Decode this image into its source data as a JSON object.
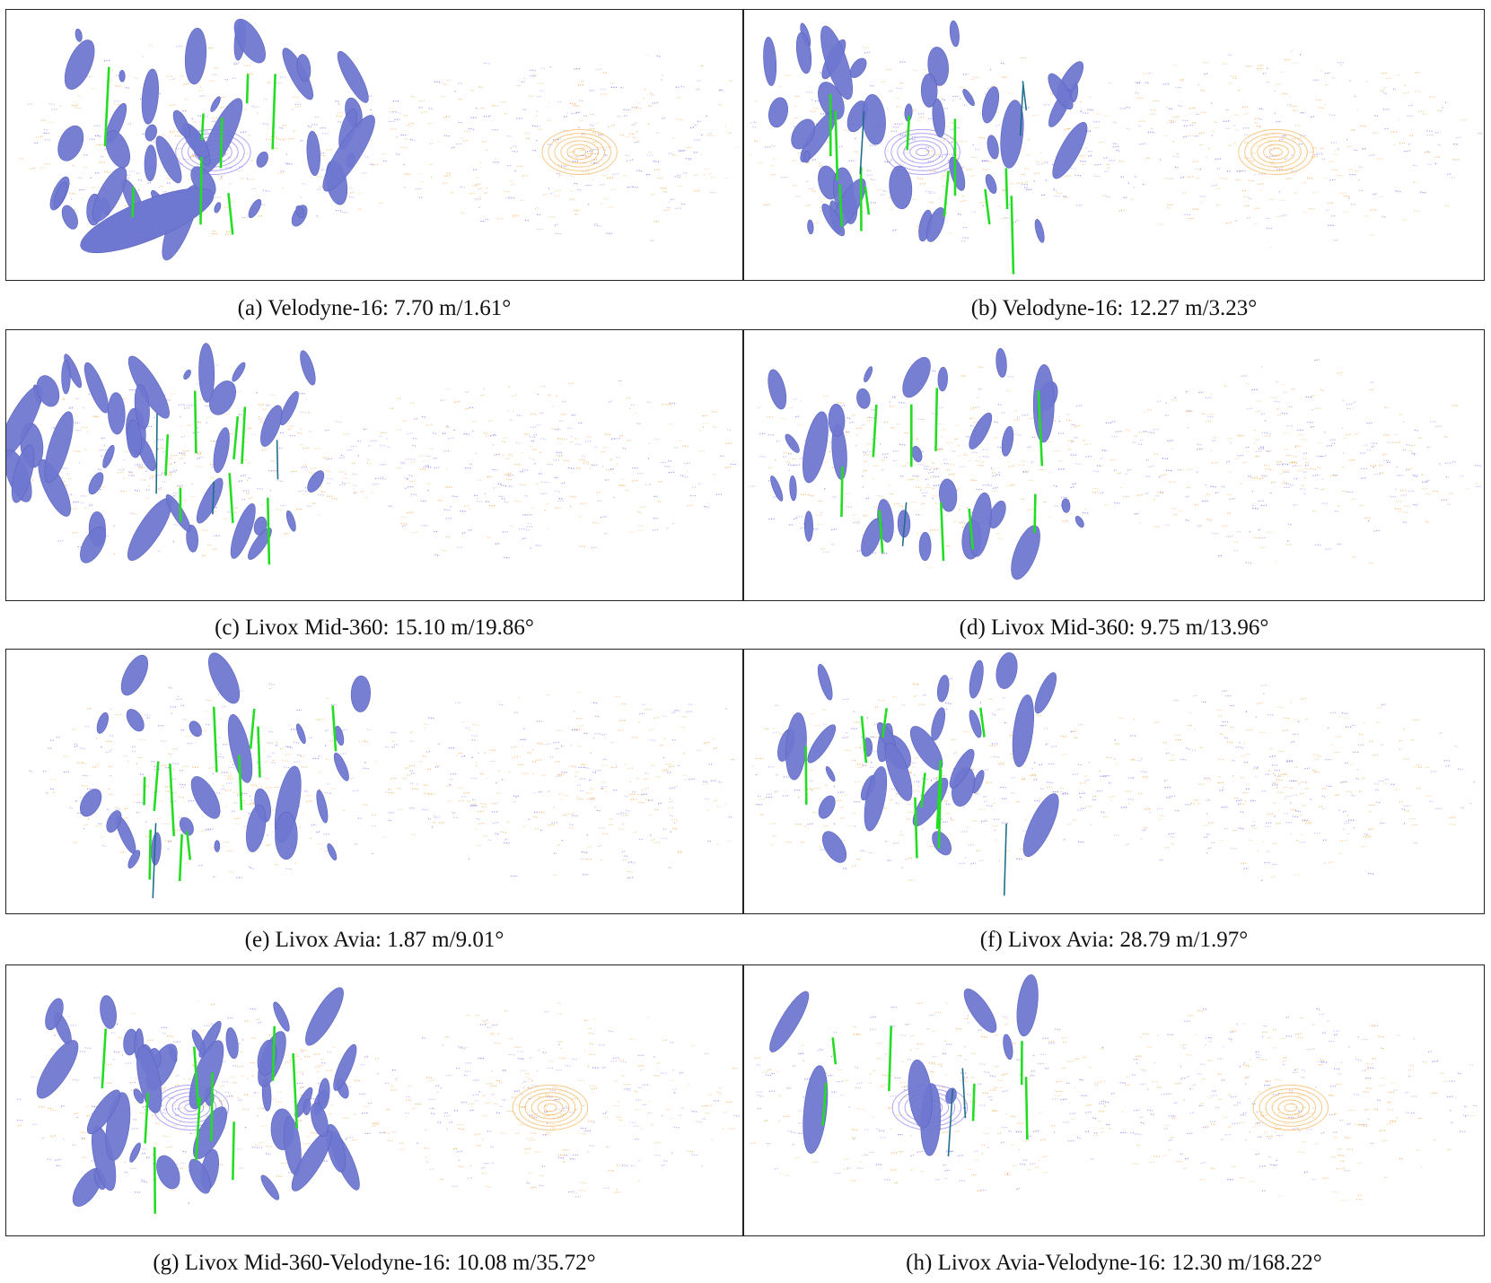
{
  "figure": {
    "colors": {
      "ellipse": "#6f78d0",
      "ellipse_stroke": "#5a63bf",
      "points_source": "#f2a33a",
      "points_target": "#7b68ee",
      "correspondence": "#22dd22",
      "rejected": "#1f6e8c",
      "border": "#222222"
    },
    "panels": [
      {
        "id": "a",
        "caption": "(a) Velodyne-16: 7.70 m/1.61°"
      },
      {
        "id": "b",
        "caption": "(b) Velodyne-16: 12.27 m/3.23°"
      },
      {
        "id": "c",
        "caption": "(c) Livox Mid-360: 15.10 m/19.86°"
      },
      {
        "id": "d",
        "caption": "(d) Livox Mid-360: 9.75 m/13.96°"
      },
      {
        "id": "e",
        "caption": "(e) Livox Avia: 1.87 m/9.01°"
      },
      {
        "id": "f",
        "caption": "(f) Livox Avia: 28.79 m/1.97°"
      },
      {
        "id": "g",
        "caption": "(g) Livox Mid-360-Velodyne-16: 10.08 m/35.72°"
      },
      {
        "id": "h",
        "caption": "(h) Livox Avia-Velodyne-16: 12.30 m/168.22°"
      }
    ]
  }
}
